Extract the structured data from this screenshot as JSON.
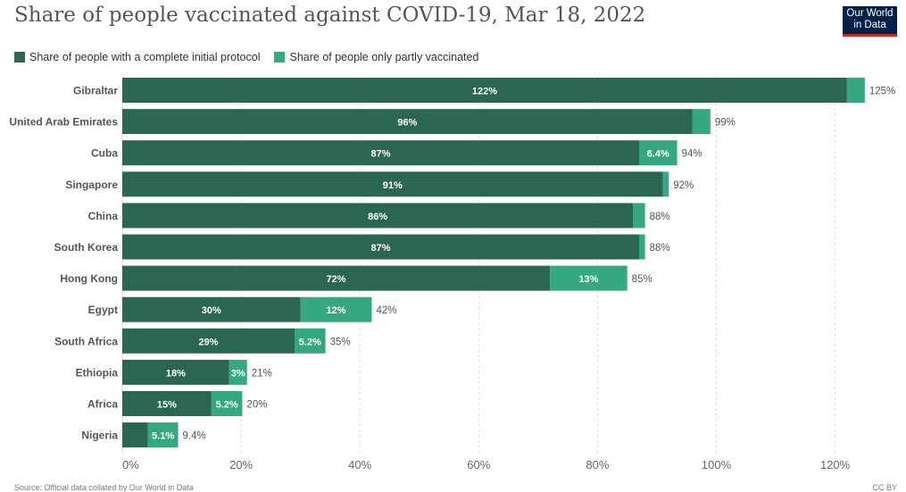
{
  "header": {
    "title": "Share of people vaccinated against COVID-19, Mar 18, 2022",
    "logo_line1": "Our World",
    "logo_line2": "in Data"
  },
  "colors": {
    "complete": "#2a6651",
    "partial": "#35a882",
    "logo_bg": "#002147",
    "logo_accent": "#ce261e"
  },
  "footer": {
    "source": "Source: Official data collated by Our World in Data",
    "license": "CC BY"
  },
  "chart_data": {
    "type": "bar",
    "orientation": "horizontal",
    "stacked": true,
    "title": "Share of people vaccinated against COVID-19, Mar 18, 2022",
    "categories": [
      "Gibraltar",
      "United Arab Emirates",
      "Cuba",
      "Singapore",
      "China",
      "South Korea",
      "Hong Kong",
      "Egypt",
      "South Africa",
      "Ethiopia",
      "Africa",
      "Nigeria"
    ],
    "series": [
      {
        "name": "Share of people with a complete initial protocol",
        "values": [
          122,
          96,
          87,
          91,
          86,
          87,
          72,
          30,
          29,
          18,
          15,
          4.3
        ],
        "labels": [
          "122%",
          "96%",
          "87%",
          "91%",
          "86%",
          "87%",
          "72%",
          "30%",
          "29%",
          "18%",
          "15%",
          ""
        ]
      },
      {
        "name": "Share of people only partly vaccinated",
        "values": [
          3,
          3,
          6.4,
          1,
          2,
          1,
          13,
          12,
          5.2,
          3,
          5.2,
          5.1
        ],
        "labels": [
          "",
          "",
          "6.4%",
          "",
          "",
          "",
          "13%",
          "12%",
          "5.2%",
          "3%",
          "5.2%",
          "5.1%"
        ]
      }
    ],
    "totals": [
      "125%",
      "99%",
      "94%",
      "92%",
      "88%",
      "88%",
      "85%",
      "42%",
      "35%",
      "21%",
      "20%",
      "9.4%"
    ],
    "xlim": [
      0,
      125
    ],
    "xticks": [
      0,
      20,
      40,
      60,
      80,
      100,
      120
    ],
    "xtick_labels": [
      "0%",
      "20%",
      "40%",
      "60%",
      "80%",
      "100%",
      "120%"
    ],
    "grid": true,
    "legend_position": "top-left"
  }
}
